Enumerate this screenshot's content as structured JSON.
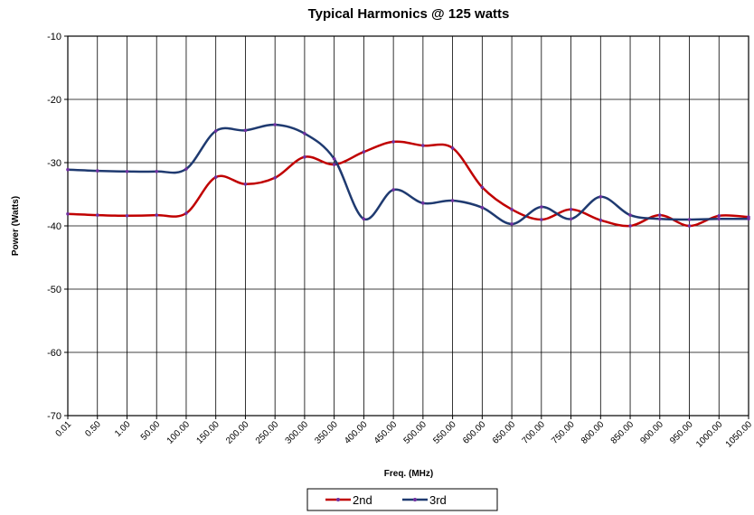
{
  "chart_data": {
    "type": "line",
    "title": "Typical Harmonics @ 125 watts",
    "x_label": "Freq. (MHz)",
    "y_label": "Power (Watts)",
    "categories": [
      "0.01",
      "0.50",
      "1.00",
      "50.00",
      "100.00",
      "150.00",
      "200.00",
      "250.00",
      "300.00",
      "350.00",
      "400.00",
      "450.00",
      "500.00",
      "550.00",
      "600.00",
      "650.00",
      "700.00",
      "750.00",
      "800.00",
      "850.00",
      "900.00",
      "950.00",
      "1000.00",
      "1050.00"
    ],
    "series": [
      {
        "name": "2nd",
        "color": "#c00000",
        "values": [
          -38.1,
          -38.3,
          -38.4,
          -38.3,
          -38.0,
          -32.3,
          -33.4,
          -32.4,
          -29.1,
          -30.3,
          -28.3,
          -26.7,
          -27.3,
          -27.7,
          -33.9,
          -37.4,
          -39.0,
          -37.4,
          -39.1,
          -40.0,
          -38.3,
          -40.0,
          -38.4,
          -38.6
        ]
      },
      {
        "name": "3rd",
        "color": "#1f3a70",
        "values": [
          -31.1,
          -31.3,
          -31.4,
          -31.4,
          -31.0,
          -25.0,
          -24.9,
          -24.0,
          -25.4,
          -29.4,
          -38.9,
          -34.3,
          -36.4,
          -36.0,
          -37.1,
          -39.7,
          -37.0,
          -38.9,
          -35.4,
          -38.3,
          -38.9,
          -39.0,
          -38.9,
          -38.9
        ]
      }
    ],
    "ylim": [
      -70,
      -10
    ],
    "yticks": [
      -10,
      -20,
      -30,
      -40,
      -50,
      -60,
      -70
    ],
    "grid": true,
    "legend": "bottom"
  }
}
